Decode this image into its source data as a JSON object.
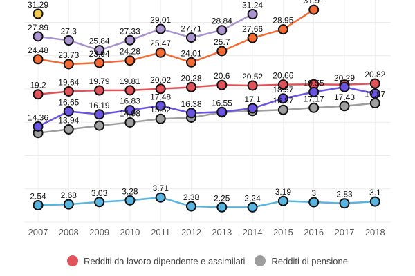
{
  "chart_data": {
    "type": "line",
    "x": [
      "2007",
      "2008",
      "2009",
      "2010",
      "2011",
      "2012",
      "2013",
      "2014",
      "2015",
      "2016",
      "2017",
      "2018"
    ],
    "ylim": [
      0,
      33.3
    ],
    "grid": true,
    "legend_placement": "bottom",
    "series": [
      {
        "name": "Redditi da lavoro dipendente e assimilati",
        "color": "#e0535a",
        "values": [
          19.2,
          19.64,
          19.79,
          19.81,
          20.02,
          20.28,
          20.6,
          20.52,
          20.66,
          20.7,
          20.65,
          20.82
        ],
        "labels": [
          "19.2",
          "19.64",
          "19.79",
          "19.81",
          "20.02",
          "20.28",
          "20.6",
          "20.52",
          "20.66",
          "",
          "",
          "20.82"
        ]
      },
      {
        "name": "Redditi di pensione",
        "color": "#9e9e9e",
        "values": [
          13.4,
          13.94,
          14.5,
          14.98,
          15.52,
          15.7,
          16.5,
          16.7,
          16.87,
          17.17,
          17.43,
          17.87
        ],
        "labels": [
          "",
          "13.94",
          "",
          "14.98",
          "15.52",
          "",
          "",
          "",
          "16.87",
          "17.17",
          "17.43",
          "17.87"
        ]
      },
      {
        "color": "#6a55e0",
        "values": [
          14.36,
          16.65,
          16.19,
          16.83,
          17.48,
          16.38,
          16.55,
          17.1,
          18.57,
          19.55,
          20.29,
          19.3
        ],
        "labels": [
          "14.36",
          "16.65",
          "16.19",
          "16.83",
          "17.48",
          "16.38",
          "16.55",
          "17.1",
          "18.57",
          "19.55",
          "20.29",
          ""
        ]
      },
      {
        "color": "#f26b35",
        "values": [
          24.48,
          23.73,
          23.94,
          24.28,
          25.47,
          24.01,
          25.7,
          27.66,
          28.95,
          31.91,
          null,
          null
        ],
        "labels": [
          "24.48",
          "23.73",
          "23.94",
          "24.28",
          "25.47",
          "24.01",
          "25.7",
          "27.66",
          "28.95",
          "31.91",
          "",
          ""
        ]
      },
      {
        "color": "#a994cf",
        "values": [
          27.89,
          27.3,
          25.84,
          27.33,
          29.01,
          27.71,
          28.84,
          31.24,
          null,
          null,
          null,
          null
        ],
        "labels": [
          "27.89",
          "27.3",
          "25.84",
          "27.33",
          "29.01",
          "27.71",
          "28.84",
          "31.24",
          "",
          "",
          "",
          ""
        ]
      },
      {
        "color": "#f0c94e",
        "values": [
          31.29,
          null,
          null,
          null,
          null,
          null,
          null,
          null,
          null,
          null,
          null,
          null
        ],
        "labels": [
          "31.29",
          "",
          "",
          "",
          "",
          "",
          "",
          "",
          "",
          "",
          "",
          ""
        ]
      },
      {
        "color": "#5ab4e0",
        "values": [
          2.54,
          2.68,
          3.03,
          3.28,
          3.71,
          2.38,
          2.25,
          2.24,
          3.19,
          3,
          2.83,
          3.1
        ],
        "labels": [
          "2.54",
          "2.68",
          "3.03",
          "3.28",
          "3.71",
          "2.38",
          "2.25",
          "2.24",
          "3.19",
          "3",
          "2.83",
          "3.1"
        ]
      }
    ]
  },
  "legend": [
    {
      "label": "Redditi da lavoro dipendente e assimilati",
      "color": "#e0535a"
    },
    {
      "label": "Redditi di pensione",
      "color": "#9e9e9e"
    }
  ]
}
